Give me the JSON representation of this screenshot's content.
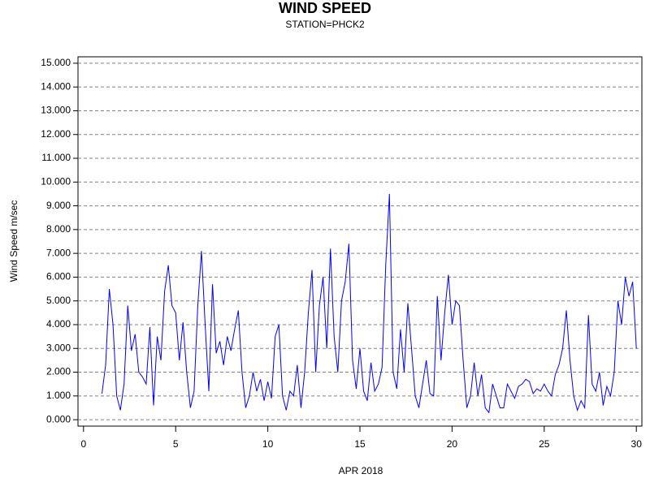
{
  "chart_data": {
    "type": "line",
    "title": "WIND SPEED",
    "subtitle": "STATION=PHCK2",
    "x_label": "APR 2018",
    "y_label": "Wind Speed m/sec",
    "color": "#0000ff",
    "grid": true,
    "xlim": [
      -0.3,
      30.3
    ],
    "ylim": [
      -0.27,
      15.27
    ],
    "xticks": [
      0,
      5,
      10,
      15,
      20,
      25,
      30
    ],
    "yticks": [
      {
        "value": 0,
        "label": "0.000"
      },
      {
        "value": 1,
        "label": "1.000"
      },
      {
        "value": 2,
        "label": "2.000"
      },
      {
        "value": 3,
        "label": "3.000"
      },
      {
        "value": 4,
        "label": "4.000"
      },
      {
        "value": 5,
        "label": "5.000"
      },
      {
        "value": 6,
        "label": "6.000"
      },
      {
        "value": 7,
        "label": "7.000"
      },
      {
        "value": 8,
        "label": "8.000"
      },
      {
        "value": 9,
        "label": "9.000"
      },
      {
        "value": 10,
        "label": "10.000"
      },
      {
        "value": 11,
        "label": "11.000"
      },
      {
        "value": 12,
        "label": "12.000"
      },
      {
        "value": 13,
        "label": "13.000"
      },
      {
        "value": 14,
        "label": "14.000"
      },
      {
        "value": 15,
        "label": "15.000"
      }
    ],
    "x": [
      1.0,
      1.2,
      1.4,
      1.6,
      1.8,
      2.0,
      2.2,
      2.4,
      2.6,
      2.8,
      3.0,
      3.2,
      3.4,
      3.6,
      3.8,
      4.0,
      4.2,
      4.4,
      4.6,
      4.8,
      5.0,
      5.2,
      5.4,
      5.6,
      5.8,
      6.0,
      6.2,
      6.4,
      6.6,
      6.8,
      7.0,
      7.2,
      7.4,
      7.6,
      7.8,
      8.0,
      8.2,
      8.4,
      8.6,
      8.8,
      9.0,
      9.2,
      9.4,
      9.6,
      9.8,
      10.0,
      10.2,
      10.4,
      10.6,
      10.8,
      11.0,
      11.2,
      11.4,
      11.6,
      11.8,
      12.0,
      12.2,
      12.4,
      12.6,
      12.8,
      13.0,
      13.2,
      13.4,
      13.6,
      13.8,
      14.0,
      14.2,
      14.4,
      14.6,
      14.8,
      15.0,
      15.2,
      15.4,
      15.6,
      15.8,
      16.0,
      16.2,
      16.4,
      16.6,
      16.8,
      17.0,
      17.2,
      17.4,
      17.6,
      17.8,
      18.0,
      18.2,
      18.4,
      18.6,
      18.8,
      19.0,
      19.2,
      19.4,
      19.6,
      19.8,
      20.0,
      20.2,
      20.4,
      20.6,
      20.8,
      21.0,
      21.2,
      21.4,
      21.6,
      21.8,
      22.0,
      22.2,
      22.4,
      22.6,
      22.8,
      23.0,
      23.2,
      23.4,
      23.6,
      23.8,
      24.0,
      24.2,
      24.4,
      24.6,
      24.8,
      25.0,
      25.2,
      25.4,
      25.6,
      25.8,
      26.0,
      26.2,
      26.4,
      26.6,
      26.8,
      27.0,
      27.2,
      27.4,
      27.6,
      27.8,
      28.0,
      28.2,
      28.4,
      28.6,
      28.8,
      29.0,
      29.2,
      29.4,
      29.6,
      29.8,
      30.0
    ],
    "values": [
      1.1,
      2.3,
      5.5,
      4.0,
      1.0,
      0.4,
      1.5,
      4.8,
      2.9,
      3.6,
      2.0,
      1.8,
      1.5,
      3.9,
      0.6,
      3.5,
      2.5,
      5.4,
      6.5,
      4.8,
      4.5,
      2.5,
      4.1,
      2.0,
      0.5,
      1.2,
      4.8,
      7.1,
      4.0,
      1.2,
      5.7,
      2.8,
      3.3,
      2.3,
      3.5,
      2.9,
      3.8,
      4.6,
      2.0,
      0.5,
      1.0,
      2.0,
      1.2,
      1.7,
      0.8,
      1.6,
      0.9,
      3.5,
      4.0,
      1.0,
      0.4,
      1.2,
      1.0,
      2.3,
      0.5,
      2.0,
      4.5,
      6.3,
      2.0,
      4.8,
      6.0,
      3.0,
      7.2,
      3.5,
      2.0,
      5.0,
      5.8,
      7.4,
      2.5,
      1.3,
      3.0,
      1.2,
      0.8,
      2.4,
      1.2,
      1.5,
      2.2,
      6.5,
      9.5,
      2.0,
      1.3,
      3.8,
      2.0,
      4.9,
      3.0,
      1.0,
      0.5,
      1.5,
      2.5,
      1.1,
      1.0,
      5.2,
      2.5,
      4.5,
      6.1,
      4.0,
      5.0,
      4.8,
      2.5,
      0.5,
      1.0,
      2.4,
      1.0,
      1.9,
      0.5,
      0.3,
      1.5,
      1.0,
      0.5,
      0.5,
      1.5,
      1.2,
      0.9,
      1.4,
      1.5,
      1.7,
      1.6,
      1.1,
      1.3,
      1.2,
      1.5,
      1.2,
      1.0,
      1.9,
      2.3,
      3.0,
      4.6,
      2.5,
      1.0,
      0.4,
      0.8,
      0.5,
      4.4,
      1.5,
      1.2,
      2.0,
      0.6,
      1.4,
      1.0,
      2.0,
      5.0,
      4.0,
      6.0,
      5.2,
      5.8,
      3.0
    ]
  }
}
